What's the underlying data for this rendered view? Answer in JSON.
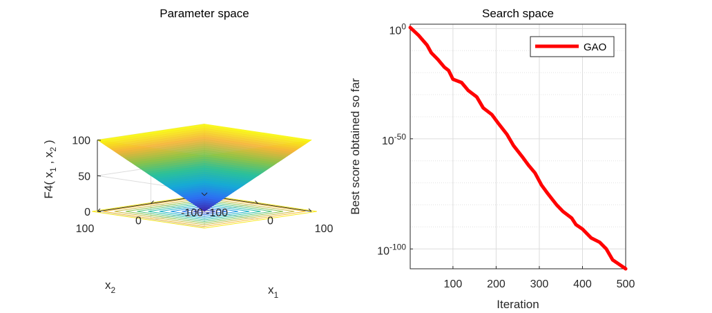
{
  "chart_data": [
    {
      "type": "surface",
      "title": "Parameter space",
      "zlabel": "F4( x",
      "zlabel_sub1": "1",
      "zlabel_mid": " , x",
      "zlabel_sub2": "2",
      "zlabel_end": " )",
      "x1label": "x",
      "x1label_sub": "1",
      "x2label": "x",
      "x2label_sub": "2",
      "x1_ticks": [
        "-100",
        "0",
        "100"
      ],
      "x2_ticks": [
        "-100",
        "0",
        "100"
      ],
      "z_ticks": [
        "0",
        "50",
        "100"
      ],
      "xlim": [
        -100,
        100
      ],
      "ylim": [
        -100,
        100
      ],
      "zlim": [
        0,
        100
      ],
      "function": "max(|x1|, |x2|)",
      "colormap": [
        "#3e26a8",
        "#2e6ff3",
        "#17a9d8",
        "#2ac19b",
        "#8bc34a",
        "#f5b43a",
        "#f9fb0e"
      ]
    },
    {
      "type": "line",
      "title": "Search space",
      "xlabel": "Iteration",
      "ylabel": "Best score obtained so far",
      "yscale": "log",
      "xlim": [
        1,
        500
      ],
      "ylim_exponent": [
        -109,
        2
      ],
      "x_ticks": [
        "100",
        "200",
        "300",
        "400",
        "500"
      ],
      "y_ticks": [
        {
          "base": "10",
          "exp": "0"
        },
        {
          "base": "10",
          "exp": "-50"
        },
        {
          "base": "10",
          "exp": "-100"
        }
      ],
      "grid": true,
      "legend_position": "top-right",
      "series": [
        {
          "name": "GAO",
          "color": "#ff0000",
          "x": [
            1,
            20,
            40,
            50,
            65,
            80,
            90,
            100,
            120,
            135,
            155,
            170,
            190,
            205,
            225,
            240,
            260,
            275,
            290,
            305,
            320,
            340,
            355,
            375,
            385,
            400,
            420,
            440,
            455,
            470,
            485,
            500
          ],
          "log10_y": [
            0.5,
            -3,
            -7.5,
            -11,
            -14,
            -17.5,
            -19,
            -23,
            -24.5,
            -28,
            -31,
            -36,
            -39,
            -43,
            -48,
            -53,
            -58,
            -62,
            -65.5,
            -71,
            -75,
            -80,
            -83,
            -86,
            -89,
            -91,
            -95,
            -97,
            -100,
            -105,
            -107,
            -109
          ]
        }
      ]
    }
  ]
}
